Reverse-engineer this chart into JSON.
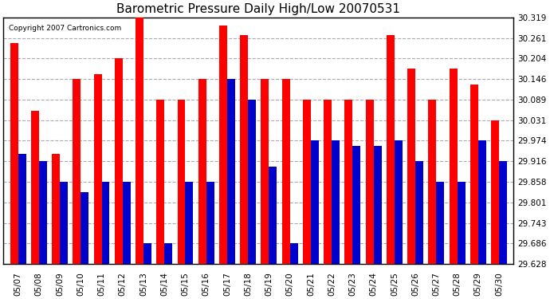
{
  "title": "Barometric Pressure Daily High/Low 20070531",
  "copyright": "Copyright 2007 Cartronics.com",
  "dates": [
    "05/07",
    "05/08",
    "05/09",
    "05/10",
    "05/11",
    "05/12",
    "05/13",
    "05/14",
    "05/15",
    "05/16",
    "05/17",
    "05/18",
    "05/19",
    "05/20",
    "05/21",
    "05/22",
    "05/23",
    "05/24",
    "05/25",
    "05/26",
    "05/27",
    "05/28",
    "05/29",
    "05/30"
  ],
  "highs": [
    30.248,
    30.057,
    29.937,
    30.146,
    30.159,
    30.204,
    30.319,
    30.089,
    30.089,
    30.146,
    30.296,
    30.27,
    30.146,
    30.146,
    30.089,
    30.089,
    30.089,
    30.089,
    30.27,
    30.175,
    30.089,
    30.175,
    30.131,
    30.031
  ],
  "lows": [
    29.937,
    29.916,
    29.858,
    29.83,
    29.858,
    29.858,
    29.686,
    29.686,
    29.858,
    29.858,
    30.146,
    30.089,
    29.9,
    29.686,
    29.974,
    29.974,
    29.96,
    29.96,
    29.974,
    29.916,
    29.858,
    29.858,
    29.974,
    29.916
  ],
  "high_color": "#ff0000",
  "low_color": "#0000cc",
  "bg_color": "#ffffff",
  "grid_color": "#aaaaaa",
  "ymin": 29.628,
  "ymax": 30.319,
  "yticks": [
    29.628,
    29.686,
    29.743,
    29.801,
    29.858,
    29.916,
    29.974,
    30.031,
    30.089,
    30.146,
    30.204,
    30.261,
    30.319
  ]
}
